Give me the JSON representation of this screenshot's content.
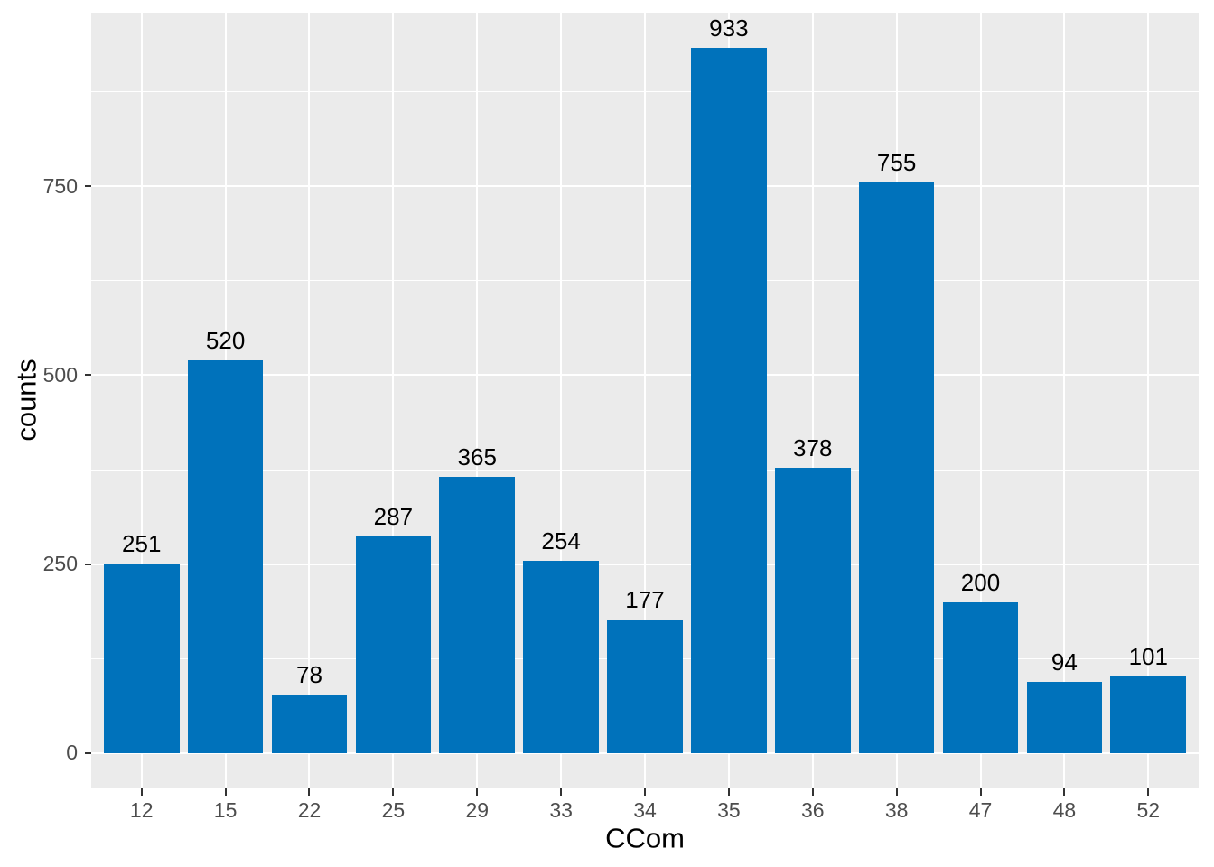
{
  "chart_data": {
    "type": "bar",
    "title": "",
    "xlabel": "CCom",
    "ylabel": "counts",
    "categories": [
      "12",
      "15",
      "22",
      "25",
      "29",
      "33",
      "34",
      "35",
      "36",
      "38",
      "47",
      "48",
      "52"
    ],
    "values": [
      251,
      520,
      78,
      287,
      365,
      254,
      177,
      933,
      378,
      755,
      200,
      94,
      101
    ],
    "bar_labels": [
      "251",
      "520",
      "78",
      "287",
      "365",
      "254",
      "177",
      "933",
      "378",
      "755",
      "200",
      "94",
      "101"
    ],
    "y_ticks_major": [
      0,
      250,
      500,
      750
    ],
    "y_tick_labels": [
      "0",
      "250",
      "500",
      "750"
    ],
    "y_ticks_minor": [
      125,
      375,
      625,
      875
    ],
    "ylim": [
      0,
      933
    ],
    "ylim_expanded": [
      -46.65,
      979.65
    ],
    "bar_width_fraction": 0.9,
    "legend_position": "none",
    "grid": true,
    "style": {
      "bar_color": "#0072BB",
      "panel_bg": "#EBEBEB",
      "grid_color": "#FFFFFF",
      "tick_label_color": "#4D4D4D",
      "tick_mark_color": "#333333",
      "text_color": "#000000"
    }
  }
}
